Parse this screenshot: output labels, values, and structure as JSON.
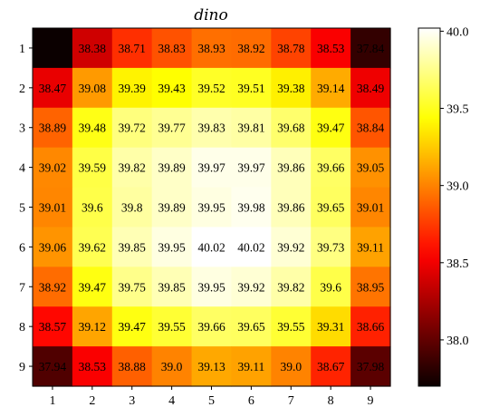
{
  "chart_data": {
    "type": "heatmap",
    "title": "dino",
    "xlabel": "",
    "ylabel": "",
    "x_ticks": [
      "1",
      "2",
      "3",
      "4",
      "5",
      "6",
      "7",
      "8",
      "9"
    ],
    "y_ticks": [
      "1",
      "2",
      "3",
      "4",
      "5",
      "6",
      "7",
      "8",
      "9"
    ],
    "values": [
      [
        37.7,
        38.38,
        38.71,
        38.83,
        38.93,
        38.92,
        38.78,
        38.53,
        37.84
      ],
      [
        38.47,
        39.08,
        39.39,
        39.43,
        39.52,
        39.51,
        39.38,
        39.14,
        38.49
      ],
      [
        38.89,
        39.48,
        39.72,
        39.77,
        39.83,
        39.81,
        39.68,
        39.47,
        38.84
      ],
      [
        39.02,
        39.59,
        39.82,
        39.89,
        39.97,
        39.97,
        39.86,
        39.66,
        39.05
      ],
      [
        39.01,
        39.6,
        39.8,
        39.89,
        39.95,
        39.98,
        39.86,
        39.65,
        39.01
      ],
      [
        39.06,
        39.62,
        39.85,
        39.95,
        40.02,
        40.02,
        39.92,
        39.73,
        39.11
      ],
      [
        38.92,
        39.47,
        39.75,
        39.85,
        39.95,
        39.92,
        39.82,
        39.6,
        38.95
      ],
      [
        38.57,
        39.12,
        39.47,
        39.55,
        39.66,
        39.65,
        39.55,
        39.31,
        38.66
      ],
      [
        37.94,
        38.53,
        38.88,
        39.0,
        39.13,
        39.11,
        39.0,
        38.67,
        37.98
      ]
    ],
    "labels": [
      [
        "",
        "38.38",
        "38.71",
        "38.83",
        "38.93",
        "38.92",
        "38.78",
        "38.53",
        "37.84"
      ],
      [
        "38.47",
        "39.08",
        "39.39",
        "39.43",
        "39.52",
        "39.51",
        "39.38",
        "39.14",
        "38.49"
      ],
      [
        "38.89",
        "39.48",
        "39.72",
        "39.77",
        "39.83",
        "39.81",
        "39.68",
        "39.47",
        "38.84"
      ],
      [
        "39.02",
        "39.59",
        "39.82",
        "39.89",
        "39.97",
        "39.97",
        "39.86",
        "39.66",
        "39.05"
      ],
      [
        "39.01",
        "39.6",
        "39.8",
        "39.89",
        "39.95",
        "39.98",
        "39.86",
        "39.65",
        "39.01"
      ],
      [
        "39.06",
        "39.62",
        "39.85",
        "39.95",
        "40.02",
        "40.02",
        "39.92",
        "39.73",
        "39.11"
      ],
      [
        "38.92",
        "39.47",
        "39.75",
        "39.85",
        "39.95",
        "39.92",
        "39.82",
        "39.6",
        "38.95"
      ],
      [
        "38.57",
        "39.12",
        "39.47",
        "39.55",
        "39.66",
        "39.65",
        "39.55",
        "39.31",
        "38.66"
      ],
      [
        "37.94",
        "38.53",
        "38.88",
        "39.0",
        "39.13",
        "39.11",
        "39.0",
        "38.67",
        "37.98"
      ]
    ],
    "colormap": "hot",
    "vmin": 37.7,
    "vmax": 40.02,
    "colorbar_ticks": [
      "38.0",
      "38.5",
      "39.0",
      "39.5",
      "40.0"
    ],
    "colorbar_tick_values": [
      38.0,
      38.5,
      39.0,
      39.5,
      40.0
    ],
    "grid": false,
    "colorbar_position": "right"
  }
}
